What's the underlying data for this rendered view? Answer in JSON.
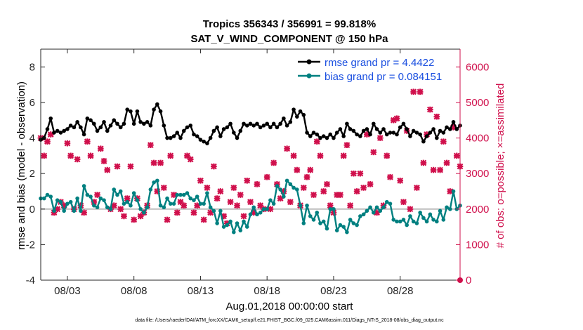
{
  "chart_data": {
    "type": "line",
    "title": [
      "Tropics 356343 / 356991 = 99.818%",
      "SAT_V_WIND_COMPONENT @ 150 hPa"
    ],
    "xlabel": "Aug.01,2018 00:00:00 start",
    "ylabel_left": "rmse and bias (model - observation)",
    "ylabel_right": "# of obs: o=possible; ×=assimilated",
    "footnote": "data file: /Users/raeder/DAI/ATM_forcXX/CAM6_setup/f.e21.FHIST_BGC.f09_025.CAM6assim.011/Diags_NTrS_2018-08/obs_diag_output.nc",
    "xlim": [
      1,
      32.5
    ],
    "ylim_left": [
      -4,
      9
    ],
    "ylim_right": [
      0,
      6500
    ],
    "xticks": [
      3,
      8,
      13,
      18,
      23,
      28
    ],
    "xtick_labels": [
      "08/03",
      "08/08",
      "08/13",
      "08/18",
      "08/23",
      "08/28"
    ],
    "yticks_left": [
      -4,
      -2,
      0,
      2,
      4,
      6,
      8
    ],
    "yticks_right": [
      0,
      1000,
      2000,
      3000,
      4000,
      5000,
      6000
    ],
    "colors": {
      "rmse": "#000000",
      "bias": "#008080",
      "obs": "#d0104c",
      "zero": "#bdbdbd"
    },
    "legend": {
      "position": "top-right",
      "entries": [
        "rmse grand pr = 4.4422",
        "bias grand pr = 0.084151"
      ]
    },
    "series": [
      {
        "name": "rmse grand pr = 4.4422",
        "axis": "left",
        "style": "line-dot",
        "x_start": 1.0,
        "x_step": 0.25,
        "values": [
          3.9,
          4.0,
          4.5,
          5.1,
          4.3,
          4.4,
          4.3,
          4.4,
          4.5,
          4.7,
          4.6,
          4.9,
          4.6,
          4.2,
          5.1,
          5.0,
          4.8,
          4.4,
          4.6,
          4.9,
          4.4,
          4.7,
          5.0,
          4.8,
          4.6,
          4.8,
          5.6,
          5.5,
          4.8,
          5.5,
          4.9,
          4.8,
          4.9,
          4.7,
          5.6,
          5.9,
          5.5,
          4.7,
          4.0,
          4.0,
          4.1,
          4.3,
          4.0,
          4.4,
          4.6,
          4.7,
          4.2,
          4.1,
          3.9,
          3.8,
          3.7,
          4.0,
          4.4,
          4.6,
          4.1,
          4.5,
          4.6,
          4.8,
          4.3,
          4.0,
          4.4,
          4.8,
          4.7,
          4.8,
          4.7,
          4.8,
          4.6,
          4.7,
          4.8,
          4.6,
          4.8,
          4.6,
          4.8,
          5.1,
          4.7,
          4.9,
          5.6,
          5.2,
          5.5,
          5.3,
          4.3,
          4.1,
          4.3,
          4.2,
          4.0,
          4.1,
          4.0,
          4.2,
          4.0,
          4.3,
          4.5,
          4.1,
          4.8,
          4.5,
          4.4,
          4.2,
          4.1,
          4.4,
          4.5,
          4.2,
          4.8,
          4.5,
          4.3,
          4.5,
          4.2,
          4.3,
          4.3,
          4.2,
          4.6,
          4.8,
          4.5,
          4.1,
          4.4,
          4.3,
          4.2,
          3.8,
          4.1,
          4.3,
          4.5,
          4.0,
          4.4,
          4.3,
          4.6,
          4.5,
          4.9,
          4.5,
          4.7
        ]
      },
      {
        "name": "bias grand pr = 0.084151",
        "axis": "left",
        "style": "line-dot",
        "x_start": 1.0,
        "x_step": 0.25,
        "values": [
          0.6,
          0.6,
          0.8,
          0.7,
          -0.1,
          0.5,
          0.4,
          -0.1,
          0.3,
          0.4,
          -0.1,
          0.6,
          -0.1,
          1.3,
          0.8,
          0.7,
          0.2,
          0.1,
          0.6,
          0.5,
          0.1,
          0.0,
          1.1,
          0.8,
          1.0,
          0.3,
          0.4,
          0.2,
          0.9,
          0.5,
          0.0,
          -0.2,
          0.1,
          1.1,
          1.5,
          1.6,
          0.2,
          0.1,
          0.6,
          0.3,
          0.3,
          0.8,
          0.8,
          0.8,
          0.9,
          0.6,
          0.5,
          0.7,
          0.3,
          0.3,
          0.9,
          0.1,
          -0.1,
          -0.8,
          -0.1,
          -1.0,
          -0.9,
          -0.7,
          -1.3,
          -0.8,
          -1.2,
          -0.7,
          -1.0,
          -0.3,
          0.1,
          -0.3,
          -0.2,
          0.0,
          0.0,
          0.5,
          0.3,
          1.3,
          1.1,
          0.7,
          1.6,
          1.4,
          1.2,
          1.1,
          0.2,
          -0.8,
          0.2,
          -0.4,
          -0.6,
          -0.2,
          -0.8,
          -0.7,
          -1.1,
          0.0,
          0.0,
          -1.2,
          -0.9,
          -1.0,
          -1.3,
          -0.6,
          -0.8,
          -0.9,
          -0.4,
          -0.3,
          -0.1,
          0.1,
          -0.2,
          0.1,
          -0.1,
          0.1,
          0.4,
          0.3,
          -0.6,
          -0.7,
          -0.7,
          -0.6,
          -0.9,
          -0.4,
          -0.7,
          -0.8,
          -0.2,
          -0.5,
          -0.7,
          -0.3,
          -0.6,
          -0.7,
          -0.1,
          -0.6,
          0.1,
          0.0,
          1.0,
          0.0,
          0.2
        ]
      },
      {
        "name": "# of obs assimilated",
        "axis": "right",
        "style": "marker-x",
        "x_start": 1.0,
        "x_step": 0.25,
        "values": [
          4000,
          3500,
          3900,
          4100,
          1900,
          2000,
          2200,
          2100,
          3850,
          3500,
          2000,
          3400,
          2100,
          1900,
          3900,
          3500,
          2200,
          2400,
          3700,
          3350,
          3100,
          2000,
          2100,
          3200,
          2000,
          1800,
          2300,
          3200,
          1700,
          2300,
          1800,
          1900,
          2100,
          3800,
          3300,
          2500,
          3300,
          2600,
          1700,
          3500,
          2400,
          1900,
          2200,
          2100,
          3500,
          3400,
          1900,
          2100,
          2800,
          1700,
          2600,
          1900,
          3200,
          2300,
          2500,
          1800,
          1600,
          2200,
          2600,
          2100,
          2400,
          1800,
          2800,
          2200,
          1900,
          2700,
          2100,
          2000,
          2900,
          2000,
          3300,
          2700,
          2300,
          2500,
          3700,
          2200,
          3500,
          3100,
          2100,
          2600,
          2900,
          3100,
          2400,
          3900,
          3500,
          2500,
          2700,
          2100,
          1900,
          2400,
          2400,
          3500,
          3800,
          2100,
          3000,
          2500,
          3000,
          2600,
          4100,
          2700,
          3600,
          1900,
          4000,
          2100,
          3500,
          2900,
          4500,
          4550,
          2800,
          2200,
          4200,
          2000,
          5300,
          2600,
          5300,
          3300,
          4100,
          4800,
          3100,
          4600,
          3100,
          3900,
          3300,
          2500,
          4300,
          3500,
          3200
        ]
      }
    ],
    "extra_points": [
      {
        "name": "right-axis-zero-marker",
        "x": 32.5,
        "y": 0,
        "axis": "right"
      }
    ]
  }
}
